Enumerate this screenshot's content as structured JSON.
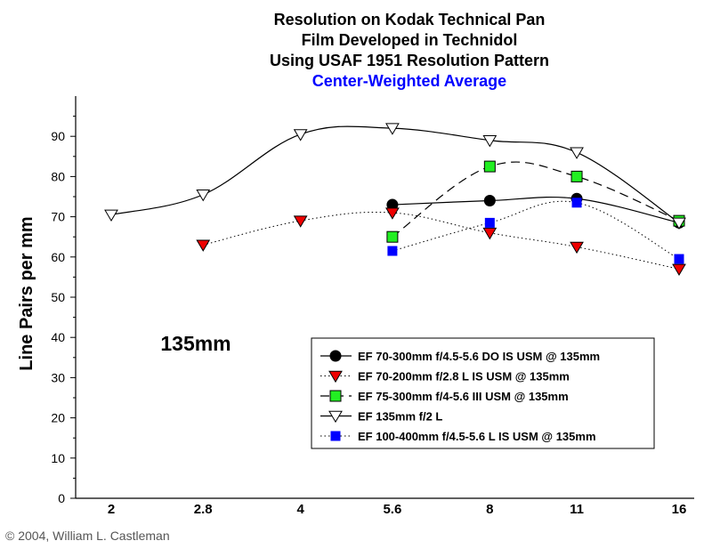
{
  "chart_data": {
    "type": "line",
    "title_lines": [
      "Resolution on Kodak Technical Pan",
      "Film Developed in Technidol",
      "Using USAF 1951 Resolution Pattern"
    ],
    "subtitle": "Center-Weighted Average",
    "ylabel": "Line Pairs per mm",
    "xlabel": "",
    "ylim": [
      0,
      100
    ],
    "yticks": [
      0,
      10,
      20,
      30,
      40,
      50,
      60,
      70,
      80,
      90
    ],
    "xticks": [
      {
        "label": "2",
        "value": 2
      },
      {
        "label": "2.8",
        "value": 2.8
      },
      {
        "label": "4",
        "value": 4
      },
      {
        "label": "5.6",
        "value": 5.6
      },
      {
        "label": "8",
        "value": 8
      },
      {
        "label": "11",
        "value": 11
      },
      {
        "label": "16",
        "value": 16
      }
    ],
    "x_scale": "log",
    "grid": false,
    "legend_position": "bottom-right",
    "annotation": "135mm",
    "series": [
      {
        "name": "EF 70-300mm f/4.5-5.6 DO IS USM @ 135mm",
        "marker": "circle",
        "color": "#000000",
        "line_style": "solid",
        "x": [
          5.6,
          8,
          11,
          16
        ],
        "y": [
          73,
          74,
          74.5,
          68.5
        ]
      },
      {
        "name": "EF 70-200mm f/2.8 L IS USM @ 135mm",
        "marker": "triangle-down",
        "color": "#ee0000",
        "line_style": "dotted",
        "x": [
          2.8,
          4,
          5.6,
          8,
          11,
          16
        ],
        "y": [
          63,
          69,
          71,
          66,
          62.5,
          57
        ]
      },
      {
        "name": "EF 75-300mm f/4-5.6 III USM @ 135mm",
        "marker": "square",
        "color": "#22ee22",
        "line_style": "dashed",
        "x": [
          5.6,
          8,
          11,
          16
        ],
        "y": [
          65,
          82.5,
          80,
          69
        ]
      },
      {
        "name": "EF 135mm f/2 L",
        "marker": "triangle-down-open",
        "color": "#ffffff",
        "line_style": "solid",
        "x": [
          2,
          2.8,
          4,
          5.6,
          8,
          11,
          16
        ],
        "y": [
          70.5,
          75.5,
          90.5,
          92,
          89,
          86,
          68.5
        ]
      },
      {
        "name": "EF 100-400mm f/4.5-5.6 L IS USM @ 135mm",
        "marker": "square-small",
        "color": "#0000ff",
        "line_style": "dotted",
        "x": [
          5.6,
          8,
          11,
          16
        ],
        "y": [
          61.5,
          68.5,
          73.5,
          59.5
        ]
      }
    ]
  },
  "copyright": "© 2004, William L. Castleman",
  "colors": {
    "subtitle": "#0000ff",
    "axis": "#000000"
  }
}
